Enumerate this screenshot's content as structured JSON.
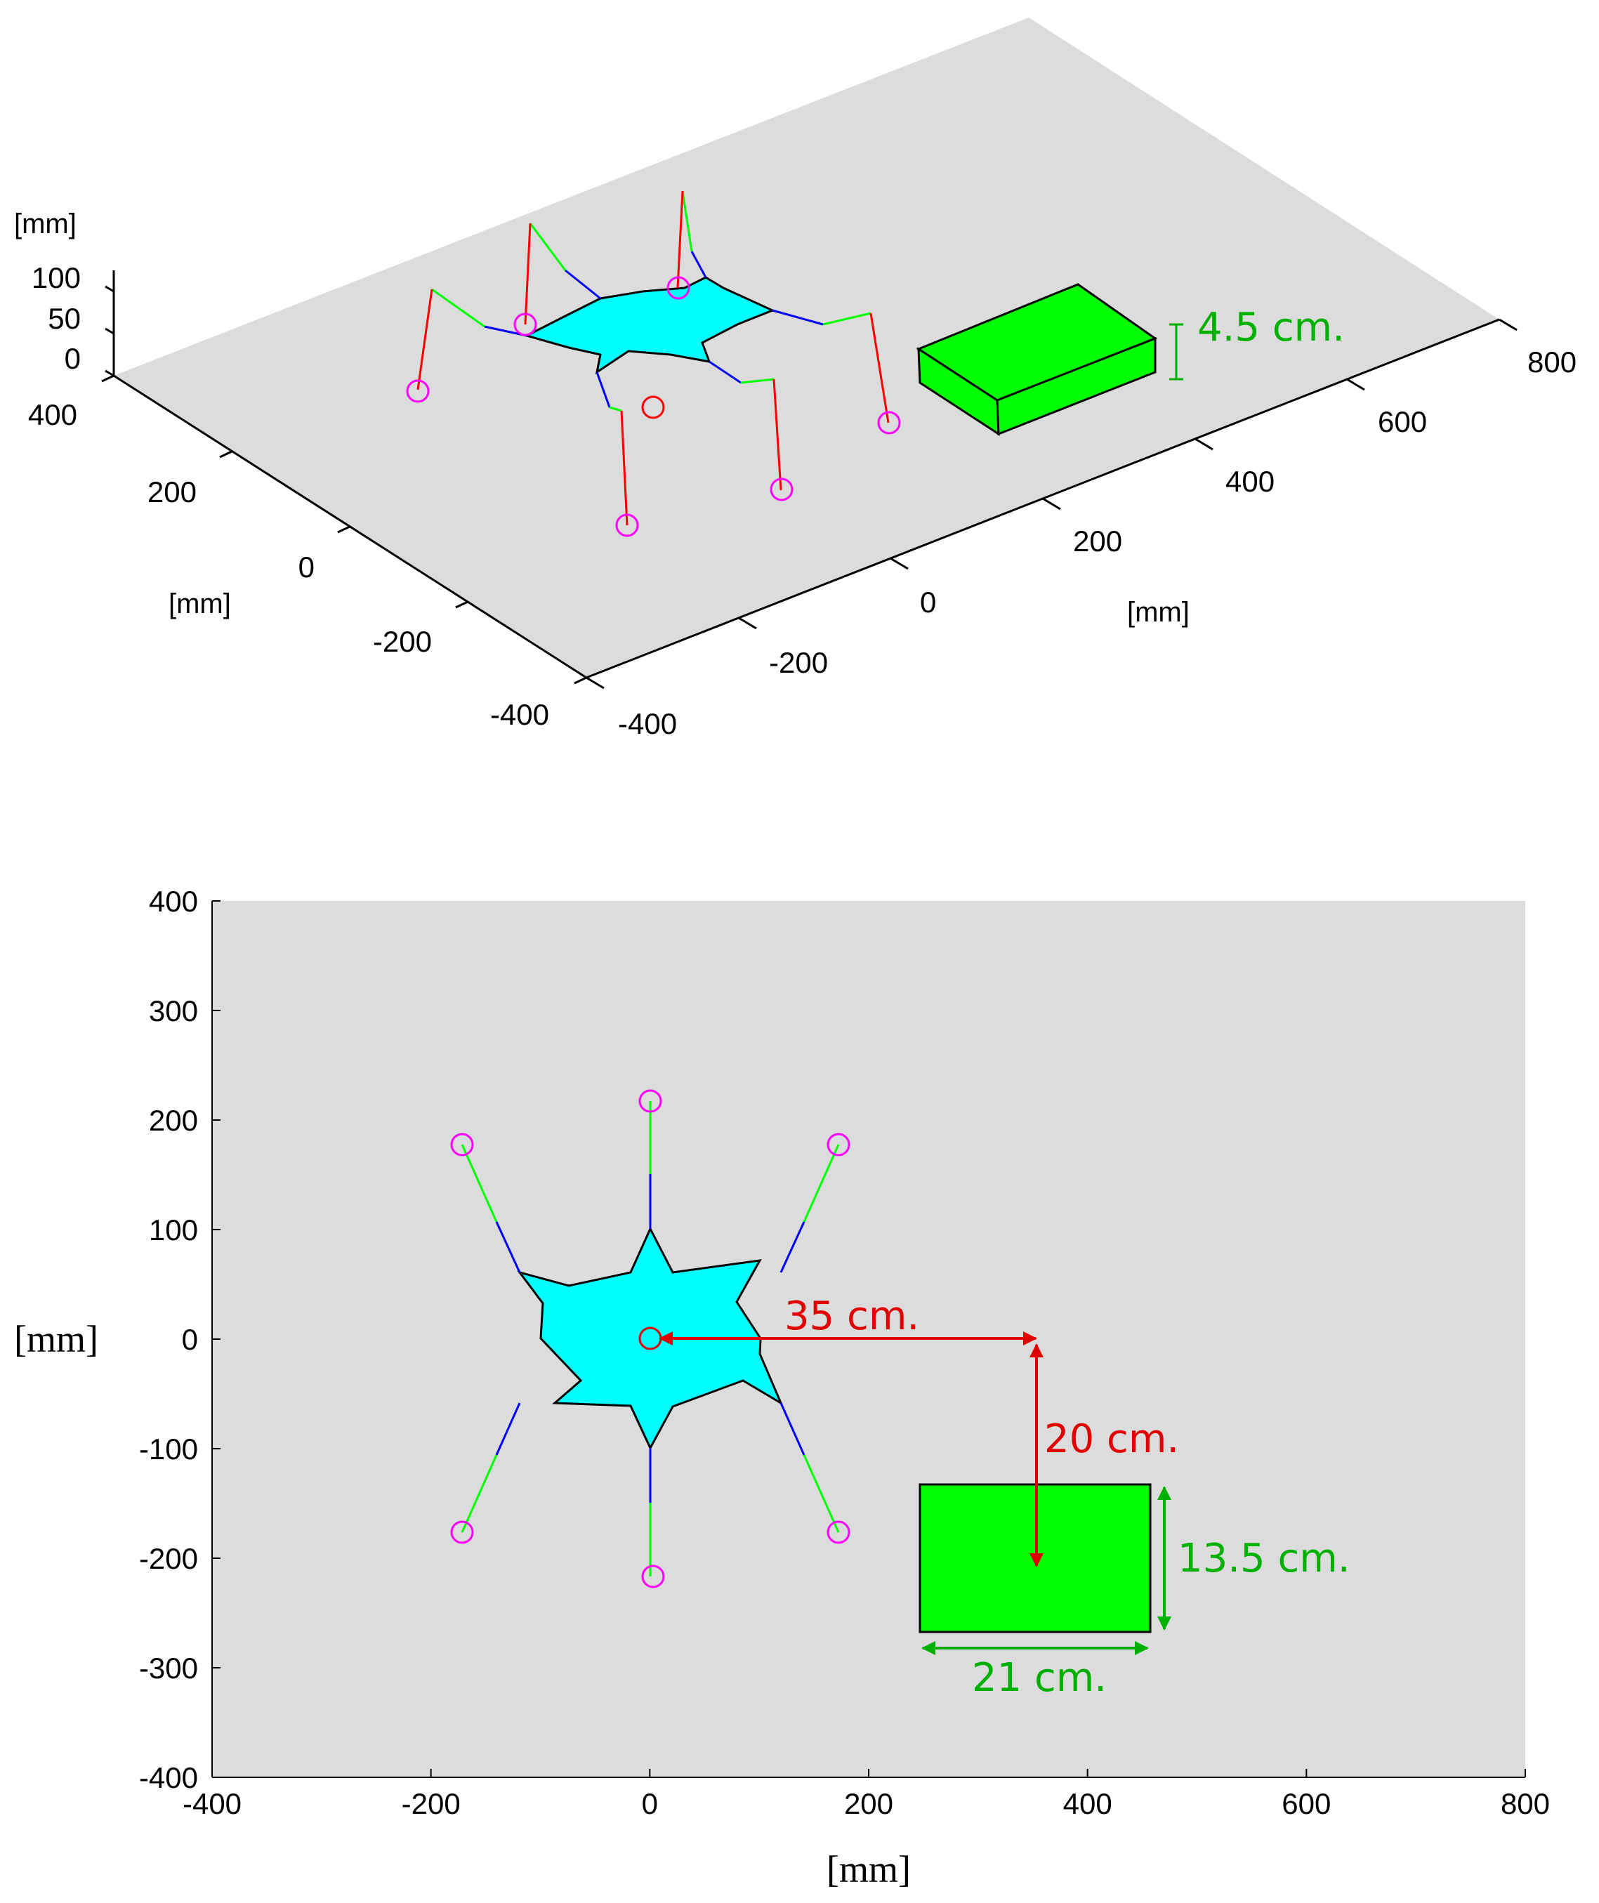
{
  "top_plot": {
    "z_unit": "[mm]",
    "z_ticks": [
      "100",
      "50",
      "0"
    ],
    "y_unit": "[mm]",
    "y_ticks": [
      "400",
      "200",
      "0",
      "-200",
      "-400"
    ],
    "x_unit": "[mm]",
    "x_ticks": [
      "-400",
      "-200",
      "0",
      "200",
      "400",
      "600",
      "800"
    ],
    "height_annotation": "4.5 cm."
  },
  "bottom_plot": {
    "y_unit": "[mm]",
    "x_unit": "[mm]",
    "y_ticks": [
      "400",
      "300",
      "200",
      "100",
      "0",
      "-100",
      "-200",
      "-300",
      "-400"
    ],
    "x_ticks": [
      "-400",
      "-200",
      "0",
      "200",
      "400",
      "600",
      "800"
    ],
    "xlim": [
      -400,
      800
    ],
    "ylim": [
      -400,
      400
    ],
    "distance_x_label": "35 cm.",
    "distance_y_label": "20 cm.",
    "box_height_label": "13.5 cm.",
    "box_width_label": "21 cm."
  },
  "colors": {
    "floor": "#dcdcdc",
    "body": "#00ffff",
    "box": "#00ff00",
    "foot_marker": "#ff00ff",
    "center_marker": "#ff0000",
    "segment_1": "#0000ff",
    "segment_2": "#00ff00",
    "segment_3": "#ff0000",
    "annotation_green": "#00b000",
    "annotation_red": "#e00000"
  }
}
